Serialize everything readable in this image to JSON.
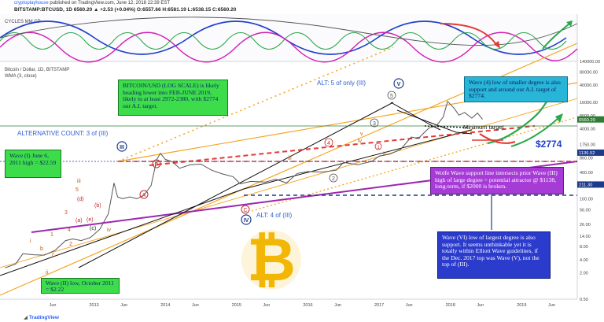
{
  "header": {
    "author": "cryptoplayhouse",
    "published_text": "published on TradingView.com, June 12, 2018 22:39 EST",
    "symbol_line": "BITSTAMP:BTCUSD, 1D  6560.20  ▲ +2.53 (+0.04%)  O:6557.66  H:6581.19  L:6538.15  C:6560.20"
  },
  "panels": {
    "cycles_label": "CYCLES MM CP",
    "main_title": "Bitcoin / Dollar, 1D, BITSTAMP",
    "wma_label": "WMA (3, close)"
  },
  "annotations": {
    "box_log_scale": "BITCOIN/USD (LOG SCALE) is likely heading lower into FEB-JUNE 2019, likely to at least 2972-2380, with $2774 our A.I. target.",
    "box_wave4": "Wave (4) low of smaller degree is also support and around our A.I. target of $2774.",
    "box_wave1": "Wave (I) June 6, 2011 high = $22.59",
    "box_wave2": "Wave (II) low, October 2011 = $2.22",
    "box_wolfe": "Wolfe Wave support line intersects prior Wave (III) high of large degree = potential attractor @ $1138, long-term, if $2000 is broken.",
    "box_wave6": "Wave (VI) low of largest degree is also support. It seems unthinkable yet it is totally within Elliott Wave guidelines, if the Dec. 2017 top was Wave (V), not the top of (III).",
    "alt5_text": "ALT: 5 of only (III)",
    "alt_count_text": "ALTERNATIVE COUNT: 3 of (III)",
    "alt4_text": "ALT: 4 of (III)",
    "min_target_text": "Minimum target",
    "target_price_text": "$2774"
  },
  "wave_labels": {
    "III_big": "III",
    "IV_big": "IV",
    "V_big": "V",
    "iii": "iii",
    "i": "i",
    "b": "b",
    "iv": "iv",
    "c": "c",
    "ii": "ii",
    "d": "(d)",
    "b_paren": "(b)",
    "a_paren": "(a)",
    "e_paren": "(e)",
    "c_paren": "(c)",
    "A": "A",
    "B": "B",
    "C": "C",
    "one": "1",
    "two": "2",
    "three": "3",
    "four": "4",
    "five": "5",
    "circ1": "1",
    "circ2": "2",
    "circ3": "3",
    "circ4": "4",
    "circ5": "5",
    "iv_small": "iv",
    "v_small": "v",
    "ii_small": "ii",
    "iii_small": "iii"
  },
  "colors": {
    "price": "#555555",
    "orange": "#f5a623",
    "purple": "#9c27b0",
    "red": "#e53935",
    "green": "#2e7d32",
    "blue": "#1e3a8a",
    "navy_box": "#2b3bcc",
    "cyan_box": "#27b5d8",
    "green_box": "#3ddc4a",
    "bitcoin": "#f2b705"
  },
  "chart_data": {
    "type": "line",
    "title": "Bitcoin / Dollar, 1D, BITSTAMP",
    "yscale": "log",
    "y_tick_labels": [
      "140000.00",
      "80000.00",
      "40000.00",
      "16000.00",
      "8000.00",
      "4000.00",
      "1750.00",
      "860.00",
      "400.00",
      "200.00",
      "100.00",
      "56.00",
      "26.00",
      "14.00",
      "8.00",
      "4.00",
      "2.00",
      "0.50"
    ],
    "y_ticks": [
      140000,
      80000,
      40000,
      16000,
      8000,
      4000,
      1750,
      860,
      400,
      200,
      100,
      56,
      26,
      14,
      8,
      4,
      2,
      0.5
    ],
    "x_tick_labels": [
      "Jun",
      "2013",
      "Jun",
      "2014",
      "Jun",
      "2015",
      "Jun",
      "2016",
      "Jun",
      "2017",
      "Jun",
      "2018",
      "Jun",
      "2019",
      "Jun"
    ],
    "x_ticks": [
      2012.42,
      2013.0,
      2013.42,
      2014.0,
      2014.42,
      2015.0,
      2015.42,
      2016.0,
      2016.42,
      2017.0,
      2017.42,
      2018.0,
      2018.42,
      2019.0,
      2019.42
    ],
    "price_badges": [
      {
        "value": 6560.2,
        "label": "6560.20"
      },
      {
        "value": 1136.52,
        "label": "1136.52"
      },
      {
        "value": 211.3,
        "label": "211.30"
      }
    ],
    "series": [
      {
        "name": "BTCUSD",
        "x": [
          2011.75,
          2011.9,
          2012.0,
          2012.15,
          2012.3,
          2012.45,
          2012.6,
          2012.7,
          2012.82,
          2012.95,
          2013.08,
          2013.2,
          2013.28,
          2013.33,
          2013.4,
          2013.5,
          2013.6,
          2013.7,
          2013.8,
          2013.88,
          2013.93,
          2014.0,
          2014.1,
          2014.2,
          2014.35,
          2014.5,
          2014.65,
          2014.8,
          2014.95,
          2015.05,
          2015.2,
          2015.4,
          2015.55,
          2015.7,
          2015.85,
          2016.0,
          2016.2,
          2016.4,
          2016.5,
          2016.7,
          2016.9,
          2017.0,
          2017.15,
          2017.3,
          2017.45,
          2017.55,
          2017.7,
          2017.8,
          2017.9,
          2017.96,
          2018.05,
          2018.12,
          2018.2,
          2018.3,
          2018.38,
          2018.45
        ],
        "y": [
          2.6,
          3.2,
          5.5,
          5.2,
          5.1,
          6.5,
          11,
          12,
          11,
          13,
          20,
          45,
          230,
          110,
          100,
          110,
          100,
          120,
          200,
          800,
          1100,
          800,
          700,
          500,
          600,
          620,
          450,
          370,
          320,
          220,
          250,
          240,
          280,
          230,
          380,
          420,
          410,
          450,
          680,
          600,
          720,
          950,
          1050,
          1350,
          2600,
          2400,
          4200,
          4600,
          7500,
          17000,
          12000,
          8200,
          9500,
          7000,
          9200,
          6600
        ]
      }
    ]
  }
}
